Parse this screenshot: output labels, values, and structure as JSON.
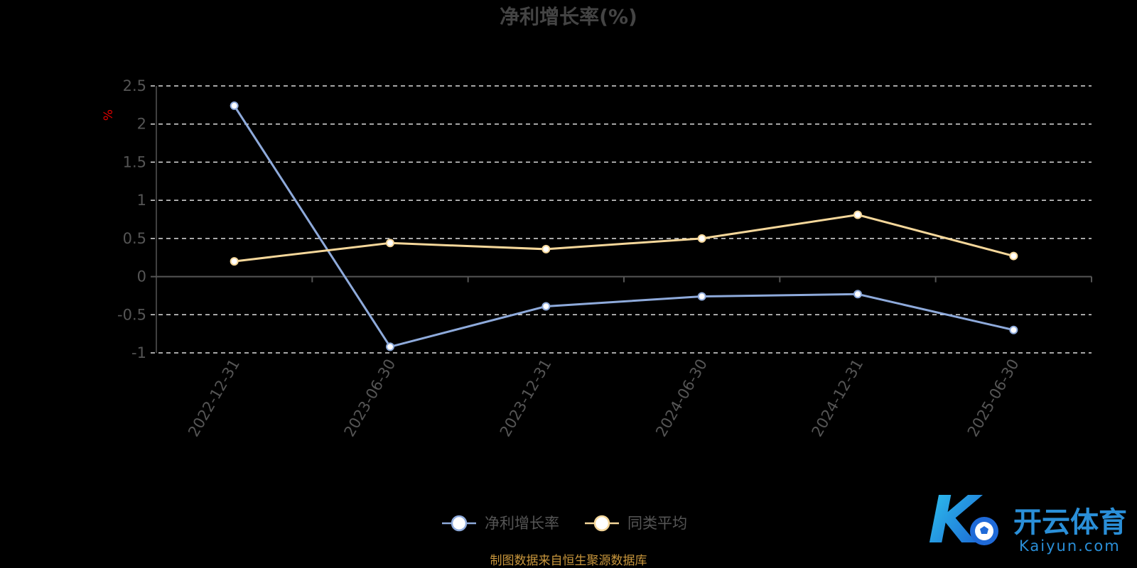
{
  "chart_data": {
    "type": "line",
    "title": "净利增长率(%)",
    "ylabel": "%",
    "categories": [
      "2022-12-31",
      "2023-06-30",
      "2023-12-31",
      "2024-06-30",
      "2024-12-31",
      "2025-06-30"
    ],
    "yticks": [
      "2.5",
      "2",
      "1.5",
      "1",
      "0.5",
      "0",
      "-0.5",
      "-1"
    ],
    "ylim": [
      -1,
      2.5
    ],
    "grid": true,
    "legend_position": "bottom-center",
    "series": [
      {
        "name": "净利增长率",
        "color": "#8eaadb",
        "values": [
          2.24,
          -0.92,
          -0.39,
          -0.26,
          -0.23,
          -0.7
        ]
      },
      {
        "name": "同类平均",
        "color": "#f5d79a",
        "values": [
          0.2,
          0.44,
          0.36,
          0.5,
          0.81,
          0.27
        ]
      }
    ]
  },
  "source_note": "制图数据来自恒生聚源数据库",
  "watermark": {
    "cn": "开云体育",
    "en": "Kaiyun.com",
    "mark": "K"
  }
}
